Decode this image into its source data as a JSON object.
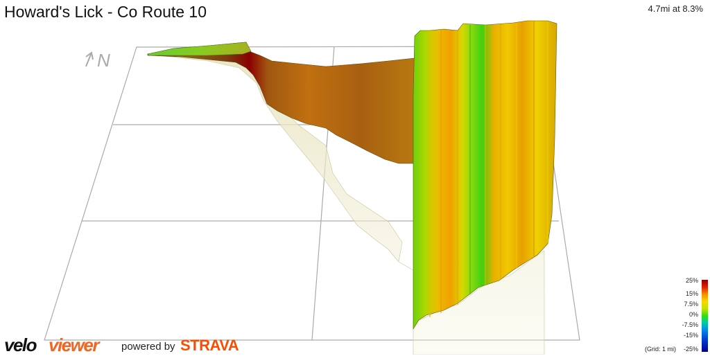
{
  "header": {
    "title": "Howard's Lick - Co Route 10",
    "summary": "4.7mi at 8.3%"
  },
  "compass": {
    "icon": "north-arrow-icon",
    "text": "N"
  },
  "legend": {
    "labels": [
      "25%",
      "15%",
      "7.5%",
      "0%",
      "-7.5%",
      "-15%",
      "-25%"
    ],
    "grid_note": "(Grid: 1 mi)"
  },
  "branding": {
    "velo": "velo",
    "viewer": "viewer",
    "powered_by": "powered by",
    "strava": "STRAVA",
    "strava_color": "#fc4c02",
    "viewer_color": "#f26522"
  },
  "colors": {
    "steep": "#8b0000",
    "moderate": "#f39000",
    "gentle": "#f6d800",
    "flat": "#33dd11"
  }
}
